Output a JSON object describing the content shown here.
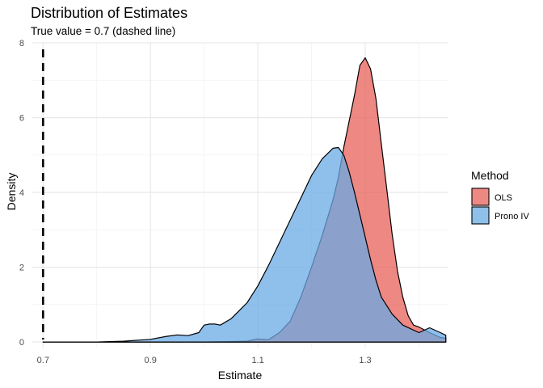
{
  "chart_data": {
    "type": "area",
    "title": "Distribution of Estimates",
    "subtitle": "True value = 0.7 (dashed line)",
    "xlabel": "Estimate",
    "ylabel": "Density",
    "xlim": [
      0.68,
      1.455
    ],
    "ylim": [
      -0.15,
      8.0
    ],
    "x_ticks": [
      0.7,
      0.9,
      1.1,
      1.3
    ],
    "x_tick_labels": [
      "0.7",
      "0.9",
      "1.1",
      "1.3"
    ],
    "x_minor_ticks": [
      0.8,
      1.0,
      1.2,
      1.4
    ],
    "y_ticks": [
      0,
      2,
      4,
      6,
      8
    ],
    "y_tick_labels": [
      "0",
      "2",
      "4",
      "6",
      "8"
    ],
    "y_minor_ticks": [
      1,
      3,
      5,
      7
    ],
    "grid": true,
    "reference_line": {
      "x": 0.7,
      "style": "dashed",
      "color": "#000000"
    },
    "legend": {
      "title": "Method",
      "placement": "right"
    },
    "series": [
      {
        "name": "OLS",
        "color": "#e8605a",
        "x": [
          0.7,
          1.0,
          1.05,
          1.08,
          1.1,
          1.12,
          1.14,
          1.16,
          1.18,
          1.2,
          1.22,
          1.24,
          1.25,
          1.26,
          1.28,
          1.29,
          1.3,
          1.31,
          1.32,
          1.33,
          1.34,
          1.35,
          1.36,
          1.37,
          1.38,
          1.39,
          1.4,
          1.42,
          1.44,
          1.45
        ],
        "y": [
          0,
          0,
          0.01,
          0.02,
          0.08,
          0.06,
          0.25,
          0.55,
          1.2,
          2.0,
          2.85,
          3.8,
          4.4,
          5.2,
          6.6,
          7.4,
          7.6,
          7.3,
          6.5,
          5.3,
          4.1,
          2.9,
          1.9,
          1.2,
          0.7,
          0.45,
          0.4,
          0.25,
          0.12,
          0.1
        ]
      },
      {
        "name": "Prono IV",
        "color": "#6aaae4",
        "x": [
          0.7,
          0.8,
          0.85,
          0.88,
          0.9,
          0.93,
          0.95,
          0.97,
          0.99,
          1.0,
          1.01,
          1.02,
          1.03,
          1.05,
          1.08,
          1.1,
          1.12,
          1.15,
          1.18,
          1.2,
          1.22,
          1.24,
          1.25,
          1.26,
          1.27,
          1.28,
          1.29,
          1.3,
          1.31,
          1.32,
          1.33,
          1.35,
          1.37,
          1.4,
          1.42,
          1.44,
          1.45
        ],
        "y": [
          0,
          0,
          0.02,
          0.05,
          0.07,
          0.15,
          0.19,
          0.17,
          0.25,
          0.45,
          0.48,
          0.48,
          0.45,
          0.62,
          1.05,
          1.5,
          2.05,
          2.95,
          3.85,
          4.45,
          4.9,
          5.18,
          5.2,
          5.0,
          4.55,
          4.0,
          3.4,
          2.8,
          2.2,
          1.65,
          1.2,
          0.75,
          0.45,
          0.25,
          0.38,
          0.25,
          0.18
        ]
      }
    ]
  }
}
